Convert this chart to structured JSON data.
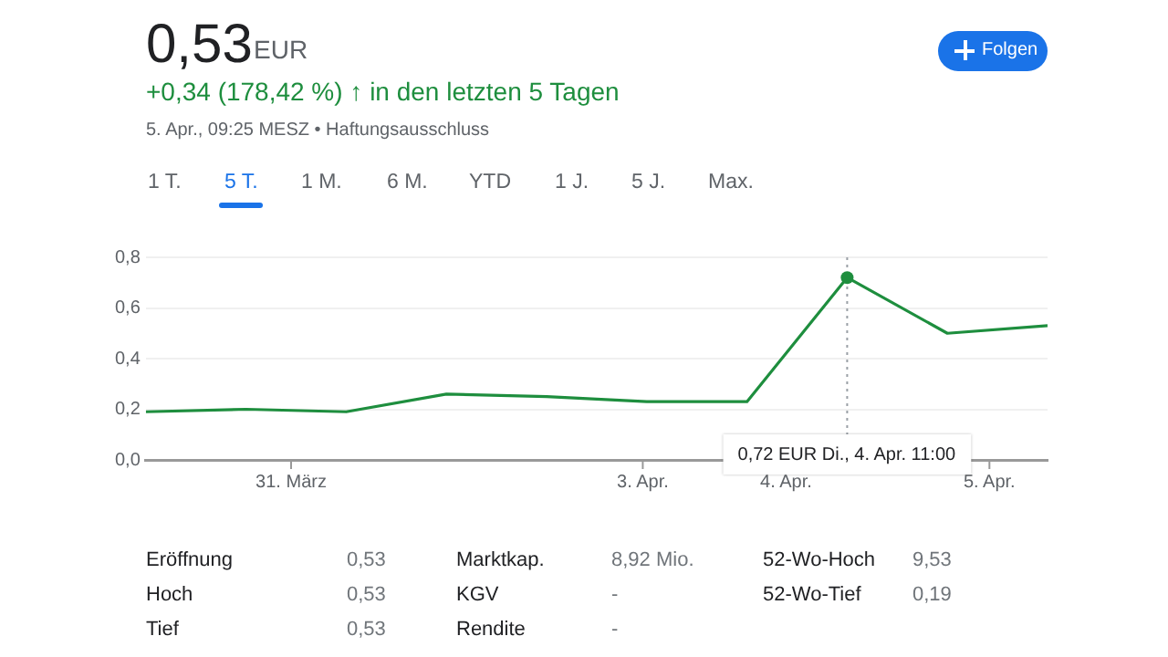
{
  "chart_data": {
    "type": "line",
    "title": "0,53",
    "annotations": [
      "EUR",
      "+0,34 (178,42 %) ↑ in den letzten 5 Tagen",
      "5. Apr., 09:25 MESZ • Haftungsausschluss",
      "1 T.",
      "5 T.",
      "1 M.",
      "6 M.",
      "YTD",
      "1 J.",
      "5 J.",
      "Max.",
      "Folgen",
      "Eröffnung",
      "0,53",
      "Marktkap.",
      "8,92 Mio.",
      "52-Wo-Hoch",
      "9,53",
      "Hoch",
      "0,53",
      "KGV",
      "-",
      "52-Wo-Tief",
      "0,19",
      "Tief",
      "0,53",
      "Rendite",
      "-",
      "31. März",
      "3. Apr.",
      "4. Apr.",
      "5. Apr.",
      "0,72 EUR Di., 4. Apr. 11:00"
    ],
    "categories": [
      null,
      null,
      null,
      null,
      null,
      null,
      null,
      null,
      null,
      null
    ],
    "series": [
      {
        "color": "#1e8e3e",
        "values": [
          0.19,
          0.2,
          0.19,
          0.26,
          0.25,
          0.23,
          0.23,
          0.72,
          0.5,
          0.53
        ]
      }
    ],
    "ylim": [
      0,
      0.8
    ],
    "yticks": [
      {
        "value": 0,
        "label": "0,0"
      },
      {
        "value": 0.2,
        "label": "0,2"
      },
      {
        "value": 0.4,
        "label": "0,4"
      },
      {
        "value": 0.6,
        "label": "0,6"
      },
      {
        "value": 0.8,
        "label": "0,8"
      }
    ],
    "grid": "y",
    "legend": false,
    "marker": "none",
    "line_style": "solid"
  }
}
